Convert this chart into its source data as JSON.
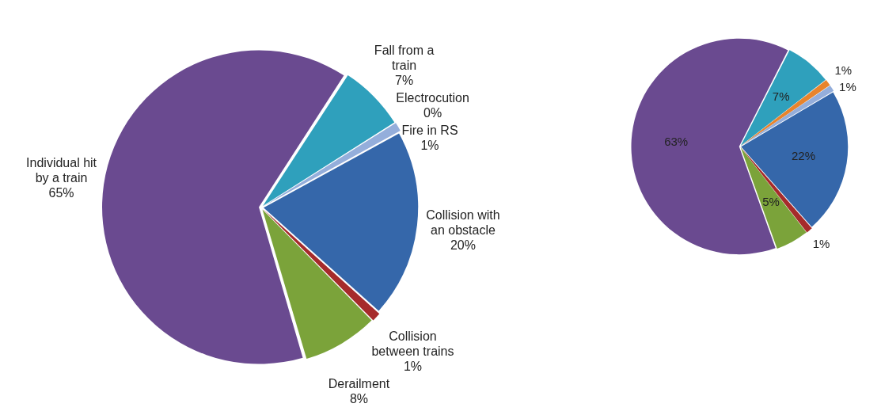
{
  "chart_data": [
    {
      "type": "pie",
      "categories": [
        "Fall from a train",
        "Electrocution",
        "Fire in RS",
        "Collision with an obstacle",
        "Collision between trains",
        "Derailment",
        "Individual hit by a train"
      ],
      "values": [
        7,
        0,
        1,
        20,
        1,
        8,
        65
      ],
      "colors": [
        "#2fa0bc",
        "#e8842c",
        "#94aedb",
        "#3567aa",
        "#a62b2b",
        "#7ba33a",
        "#6a4a90"
      ],
      "value_labels": [
        "7%",
        "0%",
        "1%",
        "20%",
        "1%",
        "8%",
        "65%"
      ]
    },
    {
      "type": "pie",
      "categories": [
        null,
        null,
        null,
        null,
        null,
        null,
        null
      ],
      "values": [
        7,
        1,
        1,
        22,
        1,
        5,
        63
      ],
      "colors": [
        "#2fa0bc",
        "#e8842c",
        "#94aedb",
        "#3567aa",
        "#a62b2b",
        "#7ba33a",
        "#6a4a90"
      ],
      "value_labels": [
        "7%",
        "1%",
        "1%",
        "22%",
        "1%",
        "5%",
        "63%"
      ]
    }
  ]
}
